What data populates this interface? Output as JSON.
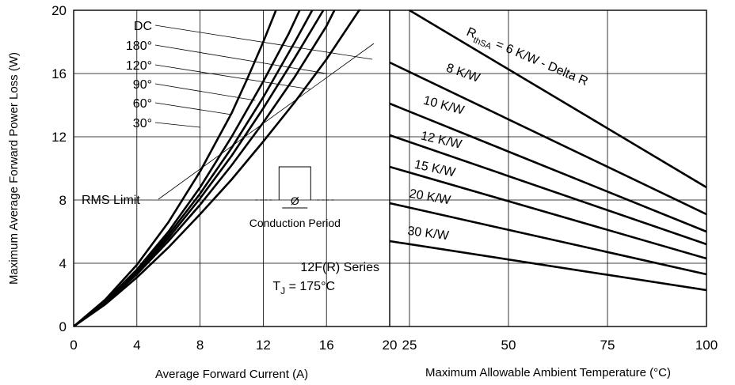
{
  "chart_data": [
    {
      "type": "line",
      "xlabel": "Average Forward Current (A)",
      "ylabel": "Maximum Average Forward Power Loss (W)",
      "xlim": [
        0,
        20
      ],
      "ylim": [
        0,
        20
      ],
      "xticks": [
        "0",
        "4",
        "8",
        "12",
        "16",
        "20"
      ],
      "yticks": [
        "0",
        "4",
        "8",
        "12",
        "16",
        "20"
      ],
      "grid": true,
      "series": [
        {
          "name": "DC",
          "points": [
            [
              0,
              0
            ],
            [
              2,
              1.7
            ],
            [
              4,
              3.9
            ],
            [
              6,
              6.6
            ],
            [
              8,
              9.8
            ],
            [
              10,
              13.5
            ],
            [
              11,
              15.7
            ],
            [
              12,
              18.0
            ],
            [
              12.8,
              20
            ]
          ]
        },
        {
          "name": "180°",
          "points": [
            [
              0,
              0
            ],
            [
              2,
              1.6
            ],
            [
              4,
              3.6
            ],
            [
              6,
              6.0
            ],
            [
              8,
              8.8
            ],
            [
              10,
              12.0
            ],
            [
              12,
              15.5
            ],
            [
              13.6,
              18.5
            ],
            [
              14.3,
              20
            ]
          ]
        },
        {
          "name": "120°",
          "points": [
            [
              0,
              0
            ],
            [
              2,
              1.6
            ],
            [
              4,
              3.5
            ],
            [
              6,
              5.8
            ],
            [
              8,
              8.4
            ],
            [
              10,
              11.3
            ],
            [
              12,
              14.5
            ],
            [
              14,
              18.0
            ],
            [
              15.1,
              20
            ]
          ]
        },
        {
          "name": "90°",
          "points": [
            [
              0,
              0
            ],
            [
              2,
              1.5
            ],
            [
              4,
              3.4
            ],
            [
              6,
              5.6
            ],
            [
              8,
              8.1
            ],
            [
              10,
              10.8
            ],
            [
              12,
              13.8
            ],
            [
              14,
              17.0
            ],
            [
              15.8,
              20
            ]
          ]
        },
        {
          "name": "60°",
          "points": [
            [
              0,
              0
            ],
            [
              2,
              1.5
            ],
            [
              4,
              3.3
            ],
            [
              6,
              5.4
            ],
            [
              8,
              7.7
            ],
            [
              10,
              10.2
            ],
            [
              12,
              12.9
            ],
            [
              14,
              15.8
            ],
            [
              16,
              19.0
            ],
            [
              16.5,
              20
            ]
          ]
        },
        {
          "name": "30°",
          "points": [
            [
              0,
              0
            ],
            [
              2,
              1.4
            ],
            [
              4,
              3.1
            ],
            [
              6,
              5.0
            ],
            [
              8,
              7.1
            ],
            [
              10,
              9.3
            ],
            [
              12,
              11.7
            ],
            [
              14,
              14.2
            ],
            [
              16,
              16.9
            ],
            [
              18,
              19.9
            ],
            [
              18.8,
              21
            ]
          ]
        }
      ],
      "annotations": {
        "rms_limit": "RMS Limit",
        "conduction_period": "Conduction Period",
        "conduction_symbol": "Ø",
        "series_name": "12F(R) Series",
        "tj_label": "T",
        "tj_sub": "J",
        "tj_value": " = 175°C"
      }
    },
    {
      "type": "line",
      "xlabel": "Maximum Allowable Ambient Temperature (°C)",
      "xlim": [
        20,
        100
      ],
      "ylim": [
        0,
        20
      ],
      "xticks": [
        "25",
        "50",
        "75",
        "100"
      ],
      "grid": true,
      "series": [
        {
          "name": "RthSA = 6 K/W - Delta R",
          "points": [
            [
              25,
              20
            ],
            [
              100,
              8.8
            ]
          ]
        },
        {
          "name": "8 K/W",
          "points": [
            [
              20,
              16.7
            ],
            [
              100,
              7.1
            ]
          ]
        },
        {
          "name": "10 K/W",
          "points": [
            [
              20,
              14.1
            ],
            [
              100,
              6.0
            ]
          ]
        },
        {
          "name": "12 K/W",
          "points": [
            [
              20,
              12.1
            ],
            [
              100,
              5.2
            ]
          ]
        },
        {
          "name": "15 K/W",
          "points": [
            [
              20,
              10.1
            ],
            [
              100,
              4.3
            ]
          ]
        },
        {
          "name": "20 K/W",
          "points": [
            [
              20,
              7.8
            ],
            [
              100,
              3.3
            ]
          ]
        },
        {
          "name": "30 K/W",
          "points": [
            [
              20,
              5.4
            ],
            [
              100,
              2.3
            ]
          ]
        }
      ],
      "rth_label": {
        "R": "R",
        "sub": "thSA",
        "rest": "= 6 K/W - Delta R"
      }
    }
  ]
}
